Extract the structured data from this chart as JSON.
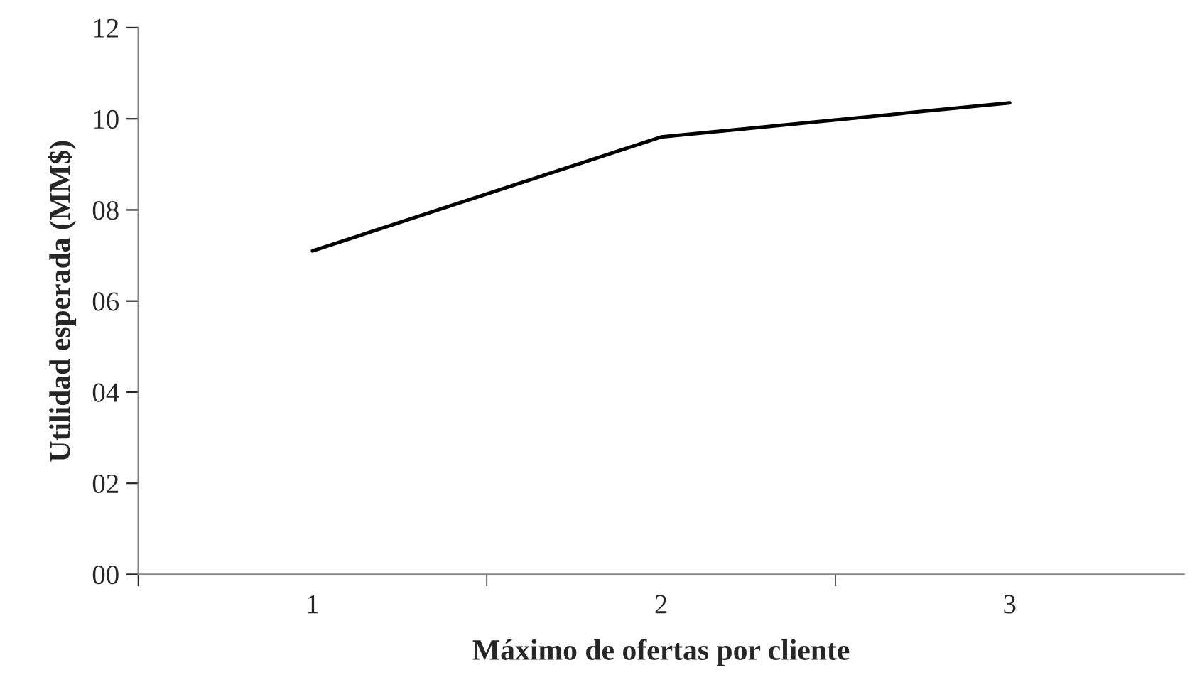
{
  "chart_data": {
    "type": "line",
    "xlabel": "Máximo de ofertas por cliente",
    "ylabel": "Utilidad esperada (MM$)",
    "categories": [
      "1",
      "2",
      "3"
    ],
    "series": [
      {
        "color": "#000000",
        "values": [
          7.1,
          9.6,
          10.35
        ]
      }
    ],
    "ylim": [
      0,
      12
    ],
    "yticks": [
      {
        "value": 0,
        "label": "00"
      },
      {
        "value": 2,
        "label": "02"
      },
      {
        "value": 4,
        "label": "04"
      },
      {
        "value": 6,
        "label": "06"
      },
      {
        "value": 8,
        "label": "08"
      },
      {
        "value": 10,
        "label": "10"
      },
      {
        "value": 12,
        "label": "12"
      }
    ],
    "grid": false,
    "legend": false,
    "marker": "none",
    "line_style": "solid"
  }
}
